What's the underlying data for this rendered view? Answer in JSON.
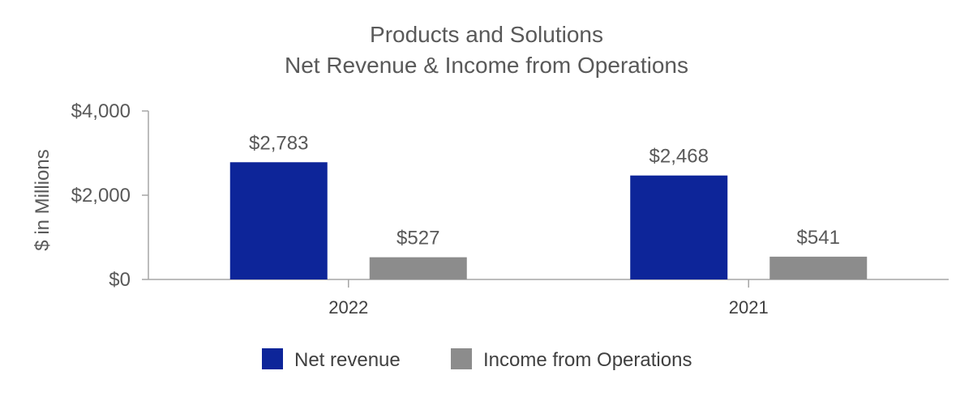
{
  "chart_data": {
    "type": "bar",
    "title": [
      "Products and Solutions",
      "Net Revenue & Income from Operations"
    ],
    "ylabel": "$ in Millions",
    "xlabel": "",
    "categories": [
      "2022",
      "2021"
    ],
    "ylim": [
      0,
      4000
    ],
    "yticks": [
      {
        "value": 0,
        "label": "$0"
      },
      {
        "value": 2000,
        "label": "$2,000"
      },
      {
        "value": 4000,
        "label": "$4,000"
      }
    ],
    "series": [
      {
        "name": "Net revenue",
        "color": "#0d2599",
        "values": [
          2783,
          2468
        ],
        "labels": [
          "$2,783",
          "$2,468"
        ]
      },
      {
        "name": "Income from Operations",
        "color": "#8c8c8c",
        "values": [
          527,
          541
        ],
        "labels": [
          "$527",
          "$541"
        ]
      }
    ],
    "grid": false,
    "legend": "bottom"
  }
}
